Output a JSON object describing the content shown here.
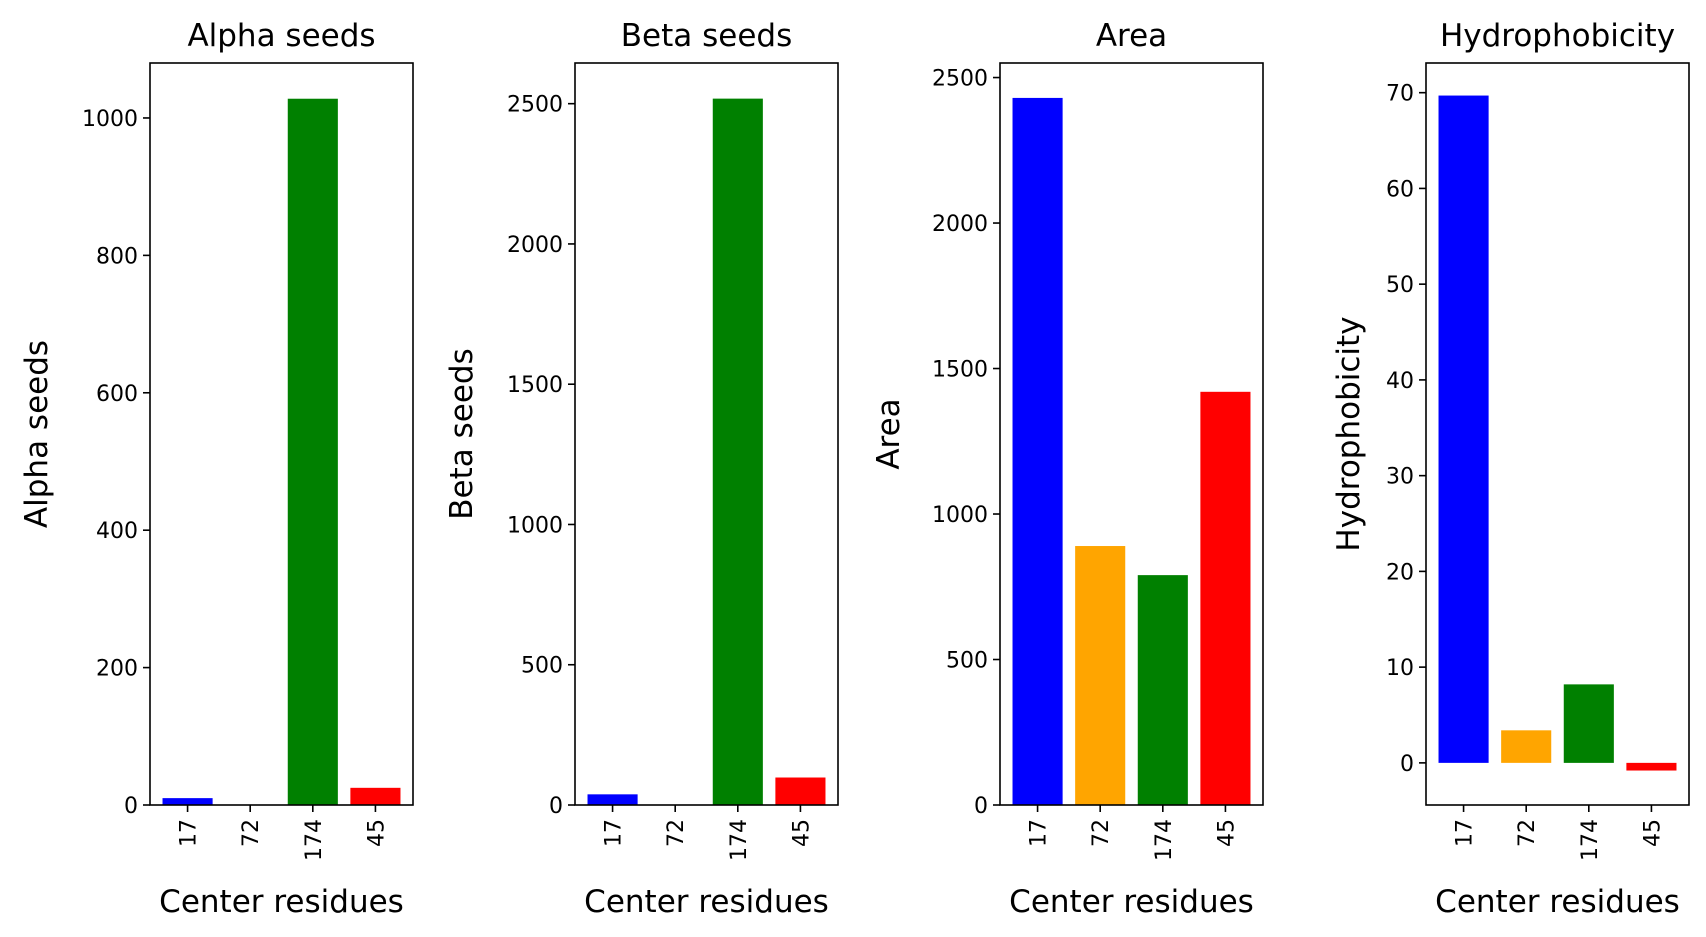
{
  "colors": {
    "17": "#0000ff",
    "72": "#ffa500",
    "174": "#008000",
    "45": "#ff0000"
  },
  "chart_data": [
    {
      "type": "bar",
      "title": "Alpha seeds",
      "xlabel": "Center residues",
      "ylabel": "Alpha seeds",
      "categories": [
        "17",
        "72",
        "174",
        "45"
      ],
      "values": [
        10,
        0,
        1028,
        25
      ],
      "ylim": [
        0,
        1080
      ],
      "yticks": [
        0,
        200,
        400,
        600,
        800,
        1000
      ],
      "ytick_labels": [
        "0",
        "200",
        "400",
        "600",
        "800",
        "1000"
      ]
    },
    {
      "type": "bar",
      "title": "Beta seeds",
      "xlabel": "Center residues",
      "ylabel": "Beta seeds",
      "categories": [
        "17",
        "72",
        "174",
        "45"
      ],
      "values": [
        38,
        0,
        2518,
        98
      ],
      "ylim": [
        0,
        2645
      ],
      "yticks": [
        0,
        500,
        1000,
        1500,
        2000,
        2500
      ],
      "ytick_labels": [
        "0",
        "500",
        "1000",
        "1500",
        "2000",
        "2500"
      ]
    },
    {
      "type": "bar",
      "title": "Area",
      "xlabel": "Center residues",
      "ylabel": "Area",
      "categories": [
        "17",
        "72",
        "174",
        "45"
      ],
      "values": [
        2430,
        890,
        790,
        1420
      ],
      "ylim": [
        0,
        2550
      ],
      "yticks": [
        0,
        500,
        1000,
        1500,
        2000,
        2500
      ],
      "ytick_labels": [
        "0",
        "500",
        "1000",
        "1500",
        "2000",
        "2500"
      ]
    },
    {
      "type": "bar",
      "title": "Hydrophobicity",
      "xlabel": "Center residues",
      "ylabel": "Hydrophobicity",
      "categories": [
        "17",
        "72",
        "174",
        "45"
      ],
      "values": [
        69.7,
        3.4,
        8.2,
        -0.8
      ],
      "ylim": [
        -4.4,
        73.1
      ],
      "yticks": [
        0,
        10,
        20,
        30,
        40,
        50,
        60,
        70
      ],
      "ytick_labels": [
        "0",
        "10",
        "20",
        "30",
        "40",
        "50",
        "60",
        "70"
      ]
    }
  ]
}
